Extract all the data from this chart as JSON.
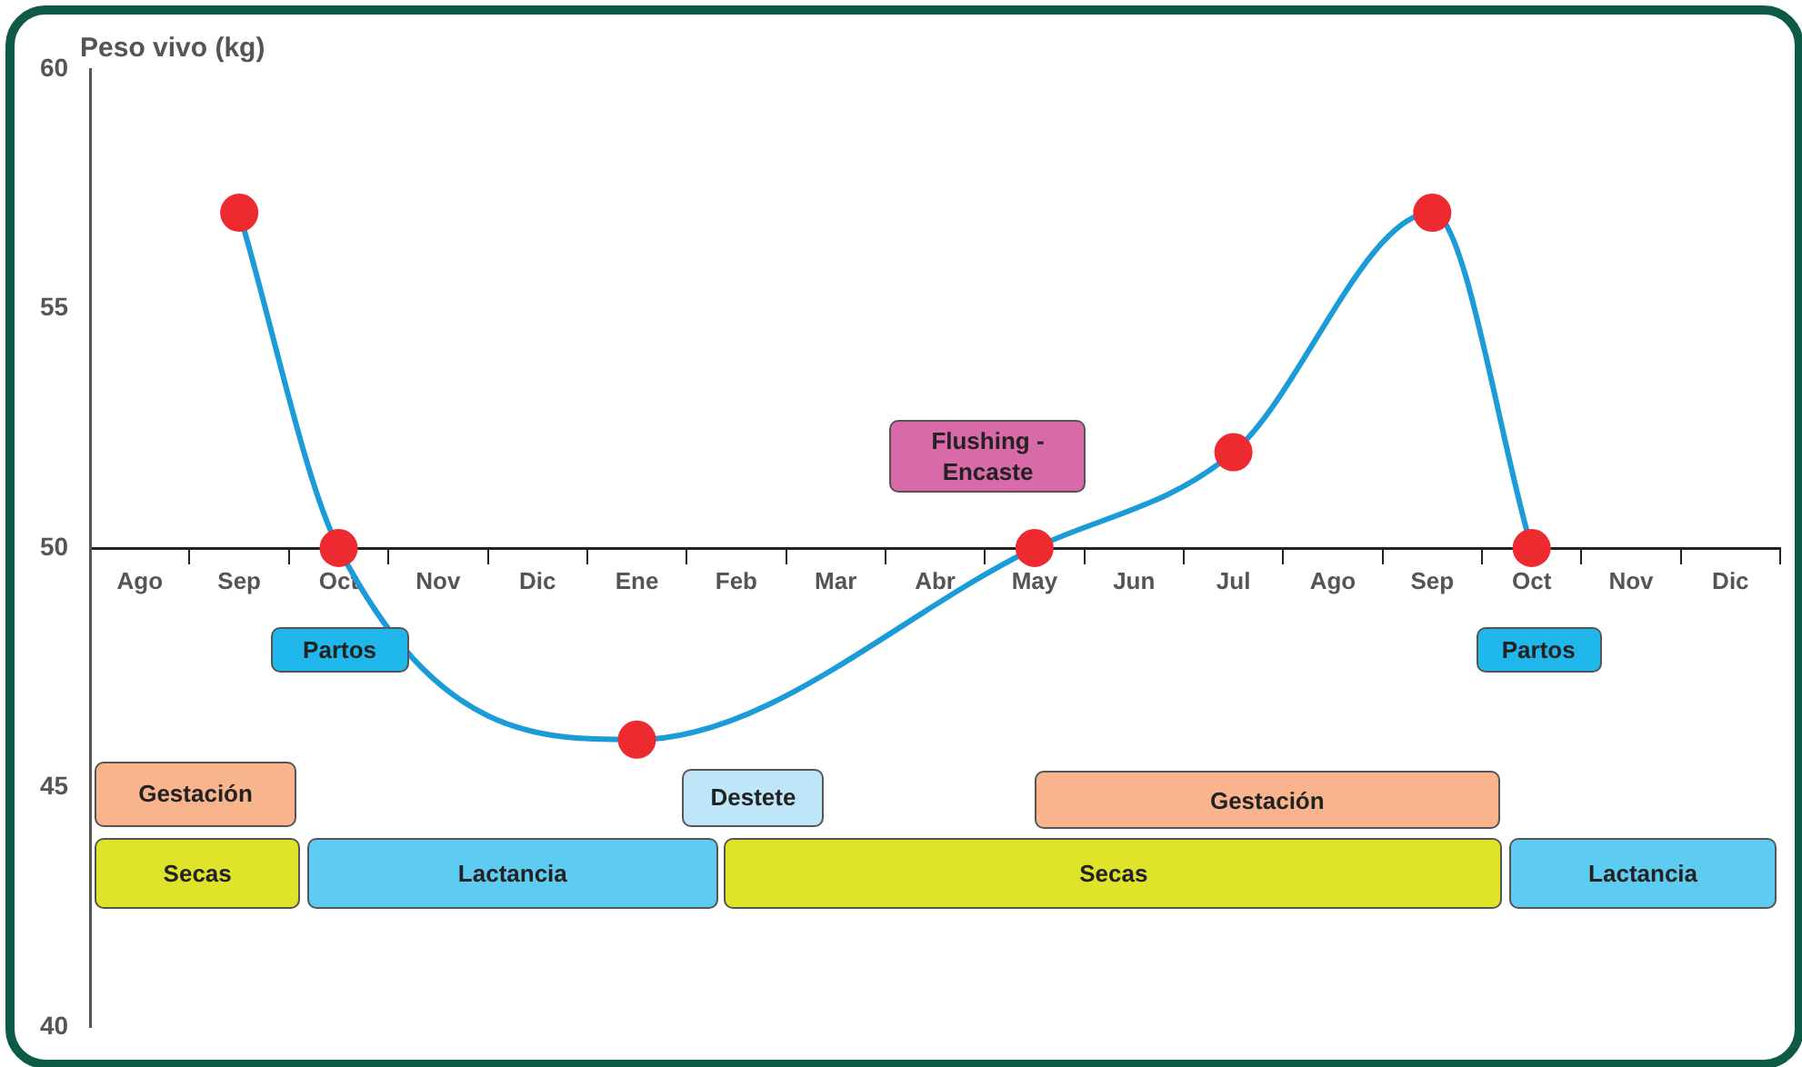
{
  "chart_data": {
    "type": "line",
    "ylabel": "Peso vivo (kg)",
    "categories": [
      "Ago",
      "Sep",
      "Oct",
      "Nov",
      "Dic",
      "Ene",
      "Feb",
      "Mar",
      "Abr",
      "May",
      "Jun",
      "Jul",
      "Ago",
      "Sep",
      "Oct",
      "Nov",
      "Dic"
    ],
    "series": [
      {
        "color": "#1b9bd7",
        "values": [
          null,
          57,
          50,
          null,
          null,
          46,
          null,
          null,
          null,
          50,
          null,
          52,
          null,
          57,
          50,
          null,
          null
        ]
      }
    ],
    "ylim": [
      40,
      60
    ],
    "yticks": [
      40,
      45,
      50,
      55,
      60
    ],
    "grid": false,
    "legend": false,
    "marker": "circle",
    "line_style": "solid",
    "annotations": [
      "Flushing - Encaste",
      "Partos",
      "Partos",
      "Gestación",
      "Destete",
      "Gestación",
      "Secas",
      "Lactancia",
      "Secas",
      "Lactancia"
    ]
  }
}
